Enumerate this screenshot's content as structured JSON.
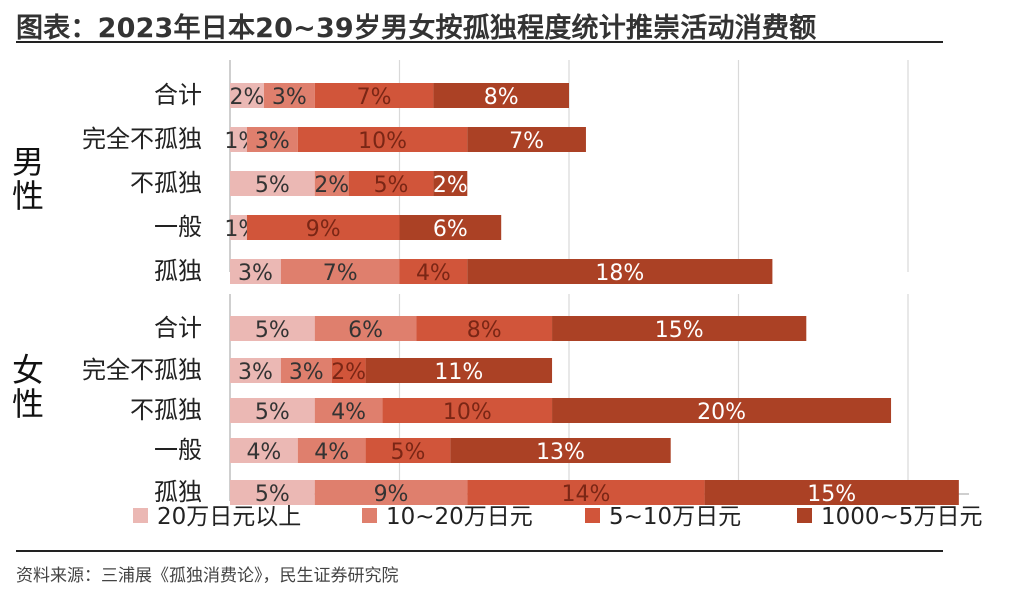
{
  "title": "图表：2023年日本20~39岁男女按孤独程度统计推崇活动消费额",
  "source": "资料来源：三浦展《孤独消费论》，民生证券研究院",
  "colors": {
    "bg": "#ffffff",
    "grid": "#d9d9d9",
    "axis": "#bfbfbf"
  },
  "chart_data": {
    "type": "bar",
    "orientation": "horizontal",
    "stacked": true,
    "groups": [
      {
        "label": "男性",
        "categories": [
          "合计",
          "完全不孤独",
          "不孤独",
          "一般",
          "孤独"
        ]
      },
      {
        "label": "女性",
        "categories": [
          "合计",
          "完全不孤独",
          "不孤独",
          "一般",
          "孤独"
        ]
      }
    ],
    "series": [
      {
        "name": "20万日元以上",
        "color": "#ebb8b4",
        "male": [
          2,
          1,
          5,
          1,
          3
        ],
        "female": [
          5,
          3,
          5,
          4,
          5
        ]
      },
      {
        "name": "10~20万日元",
        "color": "#df7f6d",
        "male": [
          3,
          3,
          2,
          0,
          7
        ],
        "female": [
          6,
          3,
          4,
          4,
          9
        ]
      },
      {
        "name": "5~10万日元",
        "color": "#d1553a",
        "male": [
          7,
          10,
          5,
          9,
          4
        ],
        "female": [
          8,
          2,
          10,
          5,
          14
        ]
      },
      {
        "name": "1000~5万日元",
        "color": "#ab4125",
        "male": [
          8,
          7,
          2,
          6,
          18
        ],
        "female": [
          15,
          11,
          20,
          13,
          15
        ]
      }
    ],
    "data_labels": {
      "male": [
        [
          "2%",
          "3%",
          "7%",
          "8%"
        ],
        [
          "1%",
          "3%",
          "10%",
          "7%"
        ],
        [
          "5%",
          "2%",
          "5%",
          "2%"
        ],
        [
          "1%",
          "",
          "9%",
          "6%"
        ],
        [
          "3%",
          "7%",
          "4%",
          "18%"
        ]
      ],
      "female": [
        [
          "5%",
          "6%",
          "8%",
          "15%"
        ],
        [
          "3%",
          "3%",
          "2%",
          "11%"
        ],
        [
          "5%",
          "4%",
          "10%",
          "20%"
        ],
        [
          "4%",
          "4%",
          "5%",
          "13%"
        ],
        [
          "5%",
          "9%",
          "14%",
          "15%"
        ]
      ]
    },
    "xlim": [
      0,
      44
    ],
    "grid": true,
    "legend_position": "bottom"
  }
}
